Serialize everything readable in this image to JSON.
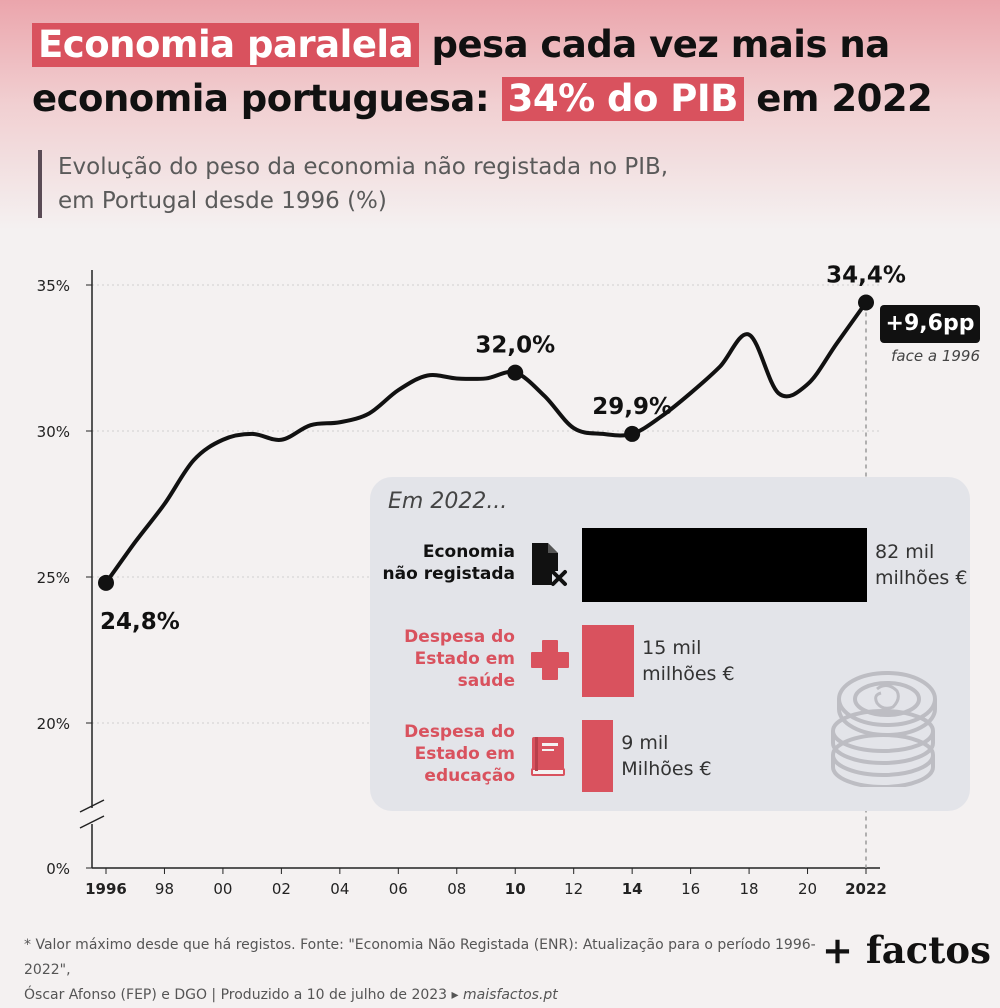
{
  "title": {
    "hl1": "Economia paralela",
    "t1": "pesa cada vez mais na economia portuguesa:",
    "hl2": "34% do PIB",
    "t2": "em 2022"
  },
  "subtitle": {
    "line1": "Evolução do peso da economia não registada no PIB,",
    "line2": "em Portugal desde 1996 (%)"
  },
  "chart_data": {
    "type": "line",
    "x": [
      1996,
      1997,
      1998,
      1999,
      2000,
      2001,
      2002,
      2003,
      2004,
      2005,
      2006,
      2007,
      2008,
      2009,
      2010,
      2011,
      2012,
      2013,
      2014,
      2015,
      2016,
      2017,
      2018,
      2019,
      2020,
      2021,
      2022
    ],
    "y": [
      24.8,
      26.2,
      27.5,
      29.0,
      29.7,
      29.9,
      29.7,
      30.2,
      30.3,
      30.6,
      31.4,
      31.9,
      31.8,
      31.8,
      32.0,
      31.2,
      30.1,
      29.9,
      29.9,
      30.5,
      31.3,
      32.2,
      33.3,
      31.3,
      31.6,
      33.0,
      34.4
    ],
    "ylim": [
      0,
      35
    ],
    "axis_break": [
      0,
      20
    ],
    "y_ticks": [
      "35%",
      "30%",
      "25%",
      "20%",
      "0%"
    ],
    "y_tick_values": [
      35,
      30,
      25,
      20,
      0
    ],
    "x_ticks": [
      {
        "year": 1996,
        "label": "1996",
        "bold": true
      },
      {
        "year": 1998,
        "label": "98",
        "bold": false
      },
      {
        "year": 2000,
        "label": "00",
        "bold": false
      },
      {
        "year": 2002,
        "label": "02",
        "bold": false
      },
      {
        "year": 2004,
        "label": "04",
        "bold": false
      },
      {
        "year": 2006,
        "label": "06",
        "bold": false
      },
      {
        "year": 2008,
        "label": "08",
        "bold": false
      },
      {
        "year": 2010,
        "label": "10",
        "bold": true
      },
      {
        "year": 2012,
        "label": "12",
        "bold": false
      },
      {
        "year": 2014,
        "label": "14",
        "bold": true
      },
      {
        "year": 2016,
        "label": "16",
        "bold": false
      },
      {
        "year": 2018,
        "label": "18",
        "bold": false
      },
      {
        "year": 2020,
        "label": "20",
        "bold": false
      },
      {
        "year": 2022,
        "label": "2022",
        "bold": true
      }
    ],
    "annotations": [
      {
        "year": 1996,
        "value": 24.8,
        "label": "24,8%",
        "position": "below"
      },
      {
        "year": 2010,
        "value": 32.0,
        "label": "32,0%",
        "position": "above"
      },
      {
        "year": 2014,
        "value": 29.9,
        "label": "29,9%",
        "position": "above"
      },
      {
        "year": 2022,
        "value": 34.4,
        "label": "34,4%",
        "position": "above"
      }
    ],
    "grid": true,
    "line_color": "#111111"
  },
  "badge": {
    "value": "+9,6pp",
    "subtitle": "face a 1996"
  },
  "panel": {
    "title": "Em 2022...",
    "rows": [
      {
        "label1": "Economia",
        "label2": "não registada",
        "label3": "",
        "value": 82,
        "amount_line1": "82 mil",
        "amount_line2": "milhões €",
        "color": "#000000",
        "label_color": "#111111",
        "icon": "document-x-icon"
      },
      {
        "label1": "Despesa do",
        "label2": "Estado em",
        "label3": "saúde",
        "value": 15,
        "amount_line1": "15 mil",
        "amount_line2": "milhões €",
        "color": "#d9525e",
        "label_color": "#d9525e",
        "icon": "health-cross-icon"
      },
      {
        "label1": "Despesa do",
        "label2": "Estado em",
        "label3": "educação",
        "value": 9,
        "amount_line1": "9 mil",
        "amount_line2": "Milhões €",
        "color": "#d9525e",
        "label_color": "#d9525e",
        "icon": "book-icon"
      }
    ]
  },
  "footnote": {
    "line1": "* Valor máximo desde que há registos. Fonte: \"Economia Não Registada (ENR): Atualização para o período 1996-2022\",",
    "line2_a": "Óscar Afonso (FEP) e DGO | Produzido a 10 de julho de 2023 ▸",
    "line2_b": "maisfactos.pt"
  },
  "brand": "+ factos"
}
